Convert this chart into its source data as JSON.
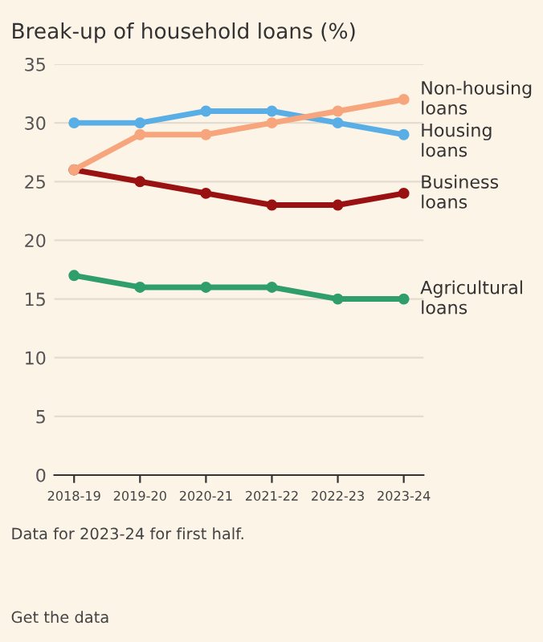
{
  "chart_data": {
    "type": "line",
    "title": "Break-up of household loans (%)",
    "categories": [
      "2018-19",
      "2019-20",
      "2020-21",
      "2021-22",
      "2022-23",
      "2023-24"
    ],
    "series": [
      {
        "name": "Non-housing loans",
        "color": "#f7a57c",
        "values": [
          26,
          29,
          29,
          30,
          31,
          32
        ]
      },
      {
        "name": "Housing loans",
        "color": "#5aaee6",
        "values": [
          30,
          30,
          31,
          31,
          30,
          29
        ]
      },
      {
        "name": "Business loans",
        "color": "#9a1111",
        "values": [
          26,
          25,
          24,
          23,
          23,
          24
        ]
      },
      {
        "name": "Agricultural loans",
        "color": "#2f9e6a",
        "values": [
          17,
          16,
          16,
          16,
          15,
          15
        ]
      }
    ],
    "ylim": [
      0,
      35
    ],
    "yticks": [
      0,
      5,
      10,
      15,
      20,
      25,
      30,
      35
    ],
    "grid": "y",
    "marker": "circle",
    "line_style": "solid",
    "legend": "right",
    "annotations": [
      "Data for 2023-24 for first half.",
      "Get the data"
    ]
  }
}
